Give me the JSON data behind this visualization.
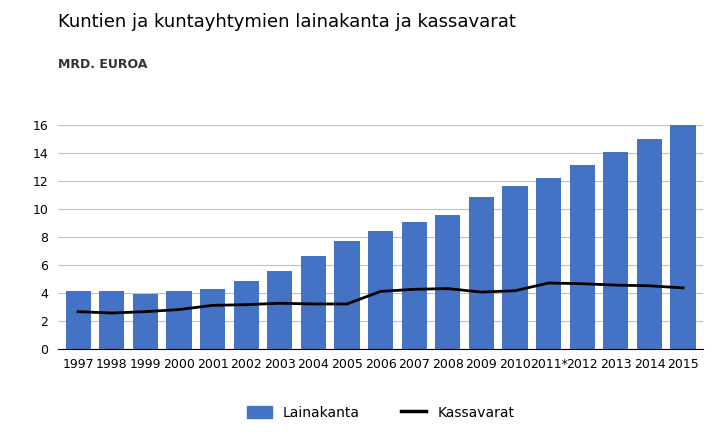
{
  "title": "Kuntien ja kuntayhtymien lainakanta ja kassavarat",
  "subtitle": "MRD. EUROA",
  "years": [
    "1997",
    "1998",
    "1999",
    "2000",
    "2001",
    "2002",
    "2003",
    "2004",
    "2005",
    "2006",
    "2007",
    "2008",
    "2009",
    "2010",
    "2011*",
    "2012",
    "2013",
    "2014",
    "2015"
  ],
  "lainakanta": [
    4.1,
    4.1,
    3.9,
    4.1,
    4.3,
    4.85,
    5.55,
    6.6,
    7.7,
    8.45,
    9.05,
    9.6,
    10.85,
    11.65,
    12.25,
    13.15,
    14.1,
    15.0,
    16.0
  ],
  "kassavarat": [
    2.65,
    2.55,
    2.65,
    2.8,
    3.1,
    3.15,
    3.25,
    3.2,
    3.2,
    4.1,
    4.25,
    4.3,
    4.05,
    4.15,
    4.7,
    4.65,
    4.55,
    4.5,
    4.35
  ],
  "bar_color": "#4472C4",
  "line_color": "#000000",
  "background_color": "#FFFFFF",
  "grid_color": "#C0C0C0",
  "ylim": [
    0,
    16
  ],
  "yticks": [
    0,
    2,
    4,
    6,
    8,
    10,
    12,
    14,
    16
  ],
  "legend_lainakanta": "Lainakanta",
  "legend_kassavarat": "Kassavarat",
  "title_fontsize": 13,
  "subtitle_fontsize": 9,
  "tick_fontsize": 9,
  "legend_fontsize": 10
}
